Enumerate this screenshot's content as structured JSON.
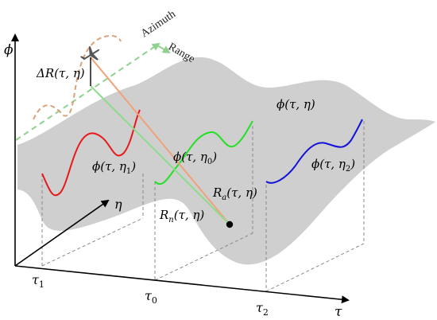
{
  "axes": {
    "vertical": "ϕ",
    "horizontal": "τ",
    "depth": "η"
  },
  "ticks": [
    {
      "base": "τ",
      "sub": "1"
    },
    {
      "base": "τ",
      "sub": "0"
    },
    {
      "base": "τ",
      "sub": "2"
    }
  ],
  "labels": {
    "surface": "ϕ(τ, η)",
    "slice1": {
      "base": "ϕ(τ, η",
      "sub": "1",
      "end": ")"
    },
    "slice0": {
      "base": "ϕ(τ, η",
      "sub": "0",
      "end": ")"
    },
    "slice2": {
      "base": "ϕ(τ, η",
      "sub": "2",
      "end": ")"
    },
    "ra": {
      "base": "R",
      "sub": "a",
      "end": "(τ, η)"
    },
    "rn": {
      "base": "R",
      "sub": "n",
      "end": "(τ, η)"
    },
    "delta_r": "ΔR(τ, η)",
    "azimuth": "Azimuth",
    "range": "Range"
  },
  "colors": {
    "surface": "#cfcfcf",
    "slice1": "#e8191b",
    "slice0": "#22e022",
    "slice2": "#1414d8",
    "ra_line": "#f0a27a",
    "rn_line": "#8ddc8d",
    "flight_path": "#8fd18f",
    "wobble": "#d9a27a"
  },
  "icons": {
    "aircraft": "airplane-icon",
    "target": "target-point-icon"
  }
}
